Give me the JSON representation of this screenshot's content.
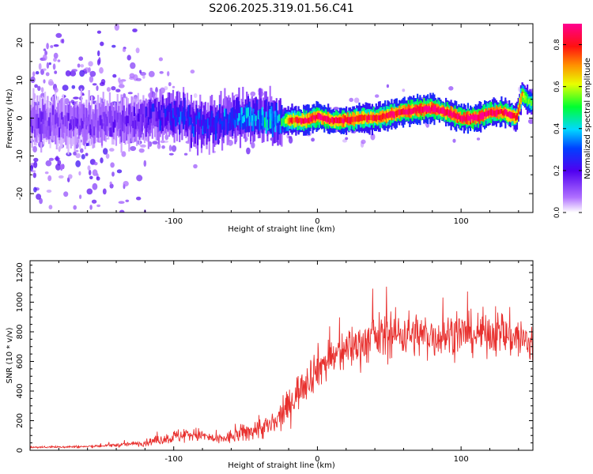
{
  "title": "S206.2025.319.01.56.C41",
  "chart_data": [
    {
      "type": "heatmap",
      "title": "",
      "xlabel": "Height of straight line (km)",
      "ylabel": "Frequency (Hz)",
      "xlim": [
        -200,
        150
      ],
      "ylim": [
        -25,
        25
      ],
      "xticks": [
        -100,
        0,
        100
      ],
      "yticks": [
        -20,
        -10,
        0,
        10,
        20
      ],
      "colorbar": {
        "label": "Normalized spectral amplitude",
        "range": [
          0,
          0.9
        ],
        "ticks": [
          "0.0",
          "0.2",
          "0.4",
          "0.6",
          "0.8"
        ],
        "colormap": "rainbow: white-violet-blue-cyan-green-yellow-orange-red-magenta"
      },
      "ridge": {
        "description": "approximate center frequency (Hz) of strongest signal vs height (km)",
        "x": [
          -150,
          -120,
          -100,
          -80,
          -60,
          -40,
          -25,
          -20,
          -10,
          0,
          10,
          20,
          30,
          40,
          50,
          60,
          70,
          80,
          90,
          100,
          110,
          120,
          130,
          138,
          142,
          146,
          150
        ],
        "freq": [
          -1,
          0,
          1,
          -2,
          0,
          0,
          -1,
          -0.5,
          -0.8,
          0.5,
          -0.8,
          -0.5,
          0,
          0,
          0.8,
          1.8,
          2.2,
          2.5,
          1.5,
          0,
          0,
          1.5,
          1.5,
          0,
          6.5,
          4.5,
          4
        ],
        "peak_amplitude": [
          0.15,
          0.2,
          0.3,
          0.3,
          0.35,
          0.4,
          0.45,
          0.75,
          0.85,
          0.85,
          0.85,
          0.85,
          0.8,
          0.8,
          0.85,
          0.85,
          0.9,
          0.9,
          0.85,
          0.9,
          0.9,
          0.85,
          0.85,
          0.8,
          0.7,
          0.55,
          0.5
        ]
      }
    },
    {
      "type": "line",
      "title": "",
      "xlabel": "Height of straight line (km)",
      "ylabel": "SNR (10 * v/v)",
      "xlim": [
        -200,
        150
      ],
      "ylim": [
        0,
        1280
      ],
      "xticks": [
        -100,
        0,
        100
      ],
      "yticks": [
        0,
        200,
        400,
        600,
        800,
        1000,
        1200
      ],
      "color": "#e8302e",
      "envelope": {
        "description": "approximate mean SNR and noise spread vs height (km)",
        "x": [
          -200,
          -160,
          -140,
          -120,
          -110,
          -100,
          -90,
          -80,
          -70,
          -60,
          -50,
          -40,
          -30,
          -20,
          -10,
          0,
          10,
          20,
          30,
          40,
          50,
          60,
          70,
          80,
          90,
          100,
          110,
          120,
          130,
          140,
          150
        ],
        "mean": [
          20,
          25,
          35,
          50,
          70,
          90,
          110,
          100,
          70,
          90,
          120,
          150,
          170,
          300,
          450,
          560,
          620,
          680,
          720,
          760,
          780,
          790,
          780,
          770,
          780,
          790,
          780,
          800,
          780,
          760,
          700
        ],
        "spread": [
          8,
          10,
          15,
          25,
          40,
          55,
          70,
          50,
          40,
          60,
          80,
          90,
          110,
          130,
          160,
          170,
          180,
          180,
          180,
          190,
          190,
          190,
          180,
          180,
          180,
          170,
          170,
          180,
          180,
          200,
          220
        ]
      }
    }
  ]
}
